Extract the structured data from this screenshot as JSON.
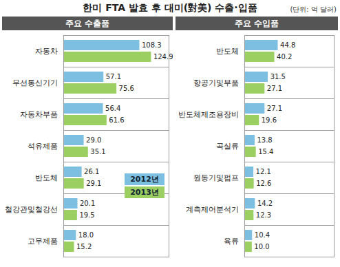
{
  "title": "한미 FTA 발효 후 대미(對美) 수출·입품",
  "subtitle": "(단위: 억 달러)",
  "chart_data": [
    {
      "type": "bar",
      "orientation": "horizontal",
      "title": "주요 수출품",
      "categories": [
        "자동차",
        "무선통신기기",
        "자동차부품",
        "석유제품",
        "반도체",
        "철강관및철강선",
        "고무제품"
      ],
      "series": [
        {
          "name": "2012년",
          "color": "#7dbfe0",
          "values": [
            108.3,
            57.1,
            56.4,
            29.0,
            26.1,
            20.1,
            18.0
          ],
          "value_labels": [
            "108.3",
            "57.1",
            "56.4",
            "29.0",
            "26.1",
            "20.1",
            "18.0"
          ]
        },
        {
          "name": "2013년",
          "color": "#9ccf62",
          "values": [
            124.9,
            75.6,
            61.6,
            35.1,
            29.1,
            19.5,
            15.2
          ],
          "value_labels": [
            "124.9",
            "75.6",
            "61.6",
            "35.1",
            "29.1",
            "19.5",
            "15.2"
          ]
        }
      ],
      "xlim": [
        0,
        150
      ],
      "xticks": [],
      "tick_labels": "y",
      "data_labels": true,
      "legend": "bottom-right"
    },
    {
      "type": "bar",
      "orientation": "horizontal",
      "title": "주요 수입품",
      "categories": [
        "반도체",
        "항공기및부품",
        "반도체제조용장비",
        "곡실류",
        "원동기및펌프",
        "계측제어분석기",
        "육류"
      ],
      "series": [
        {
          "name": "2012년",
          "color": "#7dbfe0",
          "values": [
            44.8,
            31.5,
            27.1,
            13.8,
            12.1,
            14.2,
            10.4
          ],
          "value_labels": [
            "44.8",
            "31.5",
            "27.1",
            "13.8",
            "12.1",
            "14.2",
            "10.4"
          ]
        },
        {
          "name": "2013년",
          "color": "#9ccf62",
          "values": [
            40.2,
            27.1,
            19.6,
            15.4,
            12.6,
            12.3,
            10.0
          ],
          "value_labels": [
            "40.2",
            "27.1",
            "19.6",
            "15.4",
            "12.6",
            "12.3",
            "10.0"
          ]
        }
      ],
      "xlim": [
        0,
        120
      ],
      "xticks": [],
      "tick_labels": "y",
      "data_labels": true
    }
  ]
}
